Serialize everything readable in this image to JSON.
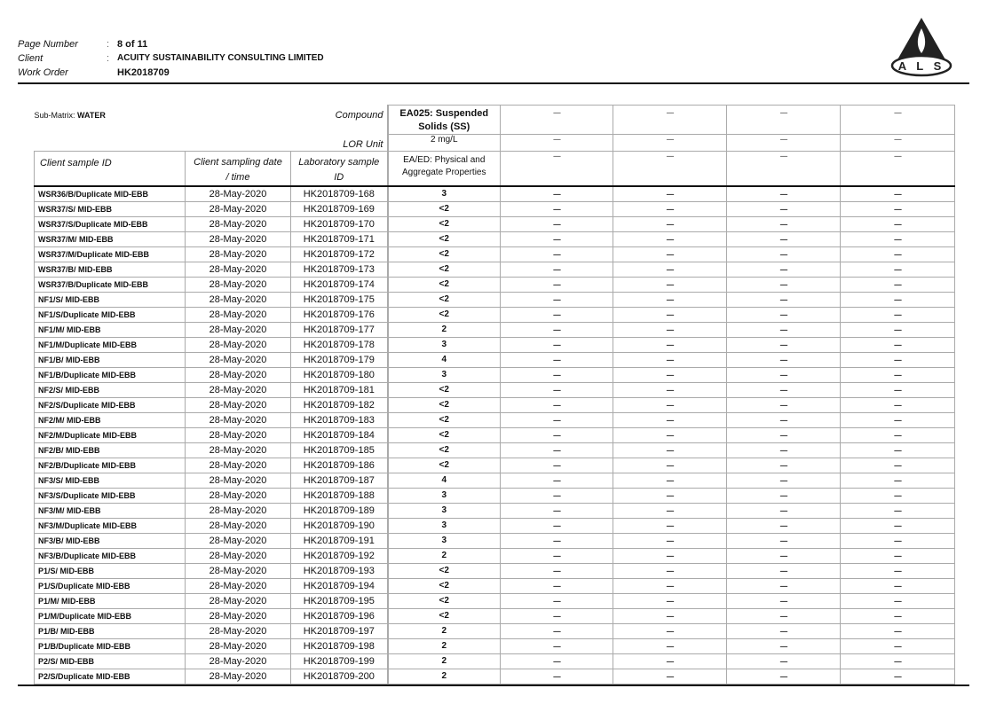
{
  "header": {
    "page_number_label": "Page Number",
    "page_number": "8 of 11",
    "client_label": "Client",
    "client": "ACUITY SUSTAINABILITY CONSULTING LIMITED",
    "work_order_label": "Work Order",
    "work_order": "HK2018709",
    "separator": ":"
  },
  "logo": {
    "text": "ALS"
  },
  "table": {
    "sub_matrix_label": "Sub-Matrix:",
    "sub_matrix": "WATER",
    "compound_label": "Compound",
    "lor_label": "LOR Unit",
    "compound": "EA025: Suspended Solids (SS)",
    "lor": "2 mg/L",
    "method": "EA/ED: Physical and Aggregate Properties",
    "empty_marker": "----",
    "col_client_id": "Client sample ID",
    "col_date_1": "Client sampling date",
    "col_date_2": "/ time",
    "col_lab_1": "Laboratory sample",
    "col_lab_2": "ID",
    "rows": [
      [
        "WSR36/B/Duplicate MID-EBB",
        "28-May-2020",
        "HK2018709-168",
        "3"
      ],
      [
        "WSR37/S/ MID-EBB",
        "28-May-2020",
        "HK2018709-169",
        "<2"
      ],
      [
        "WSR37/S/Duplicate MID-EBB",
        "28-May-2020",
        "HK2018709-170",
        "<2"
      ],
      [
        "WSR37/M/ MID-EBB",
        "28-May-2020",
        "HK2018709-171",
        "<2"
      ],
      [
        "WSR37/M/Duplicate MID-EBB",
        "28-May-2020",
        "HK2018709-172",
        "<2"
      ],
      [
        "WSR37/B/ MID-EBB",
        "28-May-2020",
        "HK2018709-173",
        "<2"
      ],
      [
        "WSR37/B/Duplicate MID-EBB",
        "28-May-2020",
        "HK2018709-174",
        "<2"
      ],
      [
        "NF1/S/ MID-EBB",
        "28-May-2020",
        "HK2018709-175",
        "<2"
      ],
      [
        "NF1/S/Duplicate MID-EBB",
        "28-May-2020",
        "HK2018709-176",
        "<2"
      ],
      [
        "NF1/M/ MID-EBB",
        "28-May-2020",
        "HK2018709-177",
        "2"
      ],
      [
        "NF1/M/Duplicate MID-EBB",
        "28-May-2020",
        "HK2018709-178",
        "3"
      ],
      [
        "NF1/B/ MID-EBB",
        "28-May-2020",
        "HK2018709-179",
        "4"
      ],
      [
        "NF1/B/Duplicate MID-EBB",
        "28-May-2020",
        "HK2018709-180",
        "3"
      ],
      [
        "NF2/S/ MID-EBB",
        "28-May-2020",
        "HK2018709-181",
        "<2"
      ],
      [
        "NF2/S/Duplicate MID-EBB",
        "28-May-2020",
        "HK2018709-182",
        "<2"
      ],
      [
        "NF2/M/ MID-EBB",
        "28-May-2020",
        "HK2018709-183",
        "<2"
      ],
      [
        "NF2/M/Duplicate MID-EBB",
        "28-May-2020",
        "HK2018709-184",
        "<2"
      ],
      [
        "NF2/B/ MID-EBB",
        "28-May-2020",
        "HK2018709-185",
        "<2"
      ],
      [
        "NF2/B/Duplicate MID-EBB",
        "28-May-2020",
        "HK2018709-186",
        "<2"
      ],
      [
        "NF3/S/ MID-EBB",
        "28-May-2020",
        "HK2018709-187",
        "4"
      ],
      [
        "NF3/S/Duplicate MID-EBB",
        "28-May-2020",
        "HK2018709-188",
        "3"
      ],
      [
        "NF3/M/ MID-EBB",
        "28-May-2020",
        "HK2018709-189",
        "3"
      ],
      [
        "NF3/M/Duplicate MID-EBB",
        "28-May-2020",
        "HK2018709-190",
        "3"
      ],
      [
        "NF3/B/ MID-EBB",
        "28-May-2020",
        "HK2018709-191",
        "3"
      ],
      [
        "NF3/B/Duplicate MID-EBB",
        "28-May-2020",
        "HK2018709-192",
        "2"
      ],
      [
        "P1/S/ MID-EBB",
        "28-May-2020",
        "HK2018709-193",
        "<2"
      ],
      [
        "P1/S/Duplicate MID-EBB",
        "28-May-2020",
        "HK2018709-194",
        "<2"
      ],
      [
        "P1/M/ MID-EBB",
        "28-May-2020",
        "HK2018709-195",
        "<2"
      ],
      [
        "P1/M/Duplicate MID-EBB",
        "28-May-2020",
        "HK2018709-196",
        "<2"
      ],
      [
        "P1/B/ MID-EBB",
        "28-May-2020",
        "HK2018709-197",
        "2"
      ],
      [
        "P1/B/Duplicate MID-EBB",
        "28-May-2020",
        "HK2018709-198",
        "2"
      ],
      [
        "P2/S/ MID-EBB",
        "28-May-2020",
        "HK2018709-199",
        "2"
      ],
      [
        "P2/S/Duplicate MID-EBB",
        "28-May-2020",
        "HK2018709-200",
        "2"
      ]
    ]
  }
}
